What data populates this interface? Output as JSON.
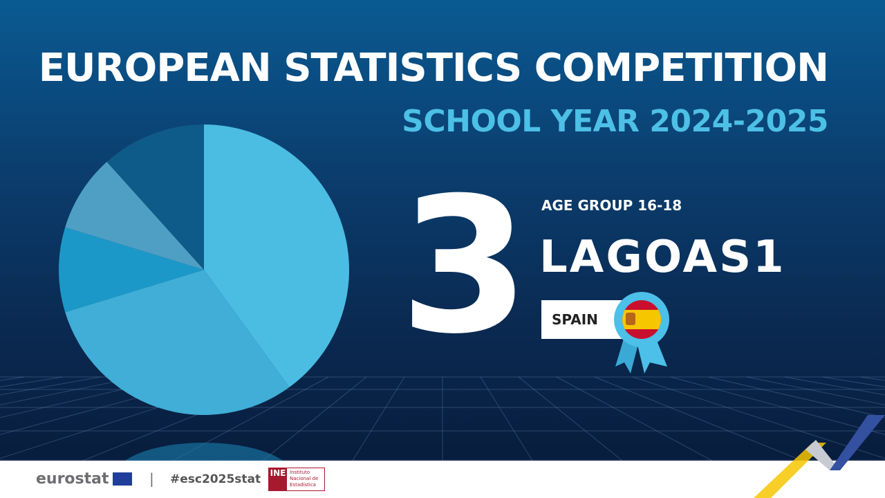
{
  "header": {
    "title": "EUROPEAN STATISTICS COMPETITION",
    "subtitle": "SCHOOL YEAR 2024-2025"
  },
  "result": {
    "rank": "3",
    "age_group": "AGE GROUP 16-18",
    "team": "LAGOAS1",
    "country": "SPAIN",
    "badge_icon": "spain-flag-rosette-icon"
  },
  "footer": {
    "eurostat": "eurostat",
    "separator": "|",
    "hashtag": "#esc2025stat",
    "ine_mark": "INE",
    "ine_name": [
      "Instituto",
      "Nacional de",
      "Estadística"
    ]
  },
  "colors": {
    "accent": "#4dc0e6",
    "background": "#0b3f70",
    "eu_yellow": "#f6c700",
    "eu_blue": "#3450a0"
  }
}
